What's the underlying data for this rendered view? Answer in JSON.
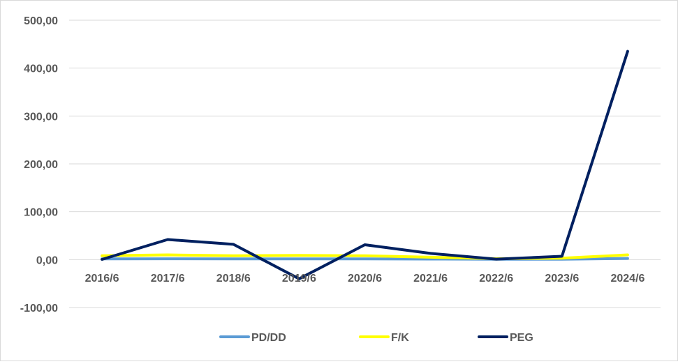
{
  "chart_data": {
    "type": "line",
    "categories": [
      "2016/6",
      "2017/6",
      "2018/6",
      "2019/6",
      "2020/6",
      "2021/6",
      "2022/6",
      "2023/6",
      "2024/6"
    ],
    "ylim": [
      -100,
      500
    ],
    "yticks": [
      -100,
      0,
      100,
      200,
      300,
      400,
      500
    ],
    "ytick_labels": [
      "-100,00",
      "0,00",
      "100,00",
      "200,00",
      "300,00",
      "400,00",
      "500,00"
    ],
    "grid": true,
    "legend_position": "bottom",
    "series": [
      {
        "name": "PD/DD",
        "color": "#5b9bd5",
        "values": [
          1.5,
          1.8,
          1.6,
          1.7,
          1.6,
          1.2,
          0.8,
          0.9,
          2.5
        ]
      },
      {
        "name": "F/K",
        "color": "#ffff00",
        "values": [
          8,
          10,
          8,
          9,
          8,
          5,
          2,
          3,
          10
        ]
      },
      {
        "name": "PEG",
        "color": "#002060",
        "values": [
          0.5,
          42,
          32,
          -40,
          31,
          13,
          1,
          7,
          435
        ]
      }
    ]
  }
}
